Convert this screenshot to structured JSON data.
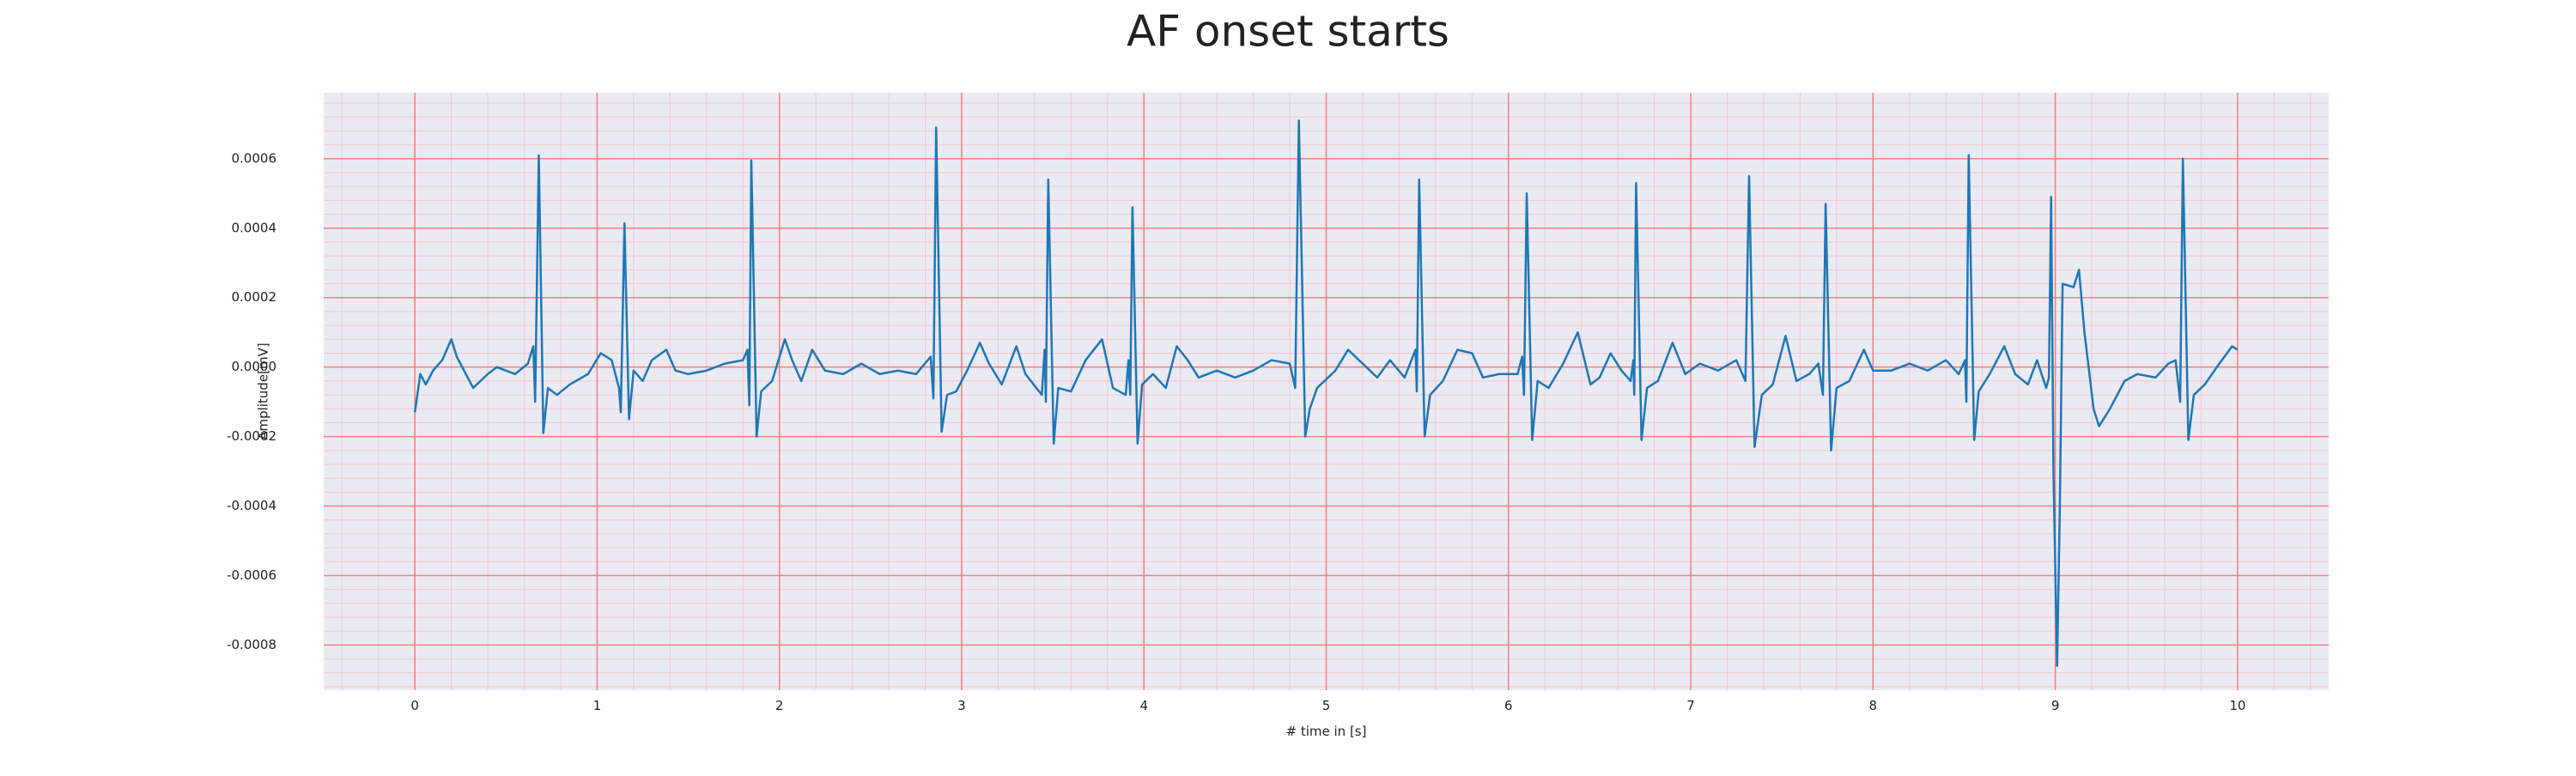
{
  "chart_data": {
    "type": "line",
    "title": "AF onset starts",
    "xlabel": "# time in [s]",
    "ylabel": "Amplitude[mV]",
    "color": "#1f77b4",
    "background": "#eaeaf2",
    "grid": true,
    "grid_color": "#f08080",
    "minor_grid_color": "#f5c6cf",
    "minor_grid": {
      "x": 0.2,
      "y": 4e-05
    },
    "xlim": [
      -0.5,
      10.5
    ],
    "ylim": [
      -0.00093,
      0.00079
    ],
    "xticks": [
      0,
      1,
      2,
      3,
      4,
      5,
      6,
      7,
      8,
      9,
      10
    ],
    "yticks": [
      -0.0008,
      -0.0006,
      -0.0004,
      -0.0002,
      {
        "value": 0,
        "label": "0.0000"
      },
      0.0002,
      0.0004,
      0.0006
    ],
    "x": [
      0,
      0.03,
      0.06,
      0.1,
      0.15,
      0.2,
      0.23,
      0.32,
      0.4,
      0.45,
      0.55,
      0.62,
      0.65,
      0.66,
      0.68,
      0.705,
      0.73,
      0.78,
      0.85,
      0.95,
      1.02,
      1.08,
      1.12,
      1.13,
      1.15,
      1.175,
      1.2,
      1.25,
      1.3,
      1.38,
      1.43,
      1.5,
      1.6,
      1.7,
      1.8,
      1.825,
      1.835,
      1.846,
      1.875,
      1.9,
      1.96,
      2.03,
      2.07,
      2.12,
      2.18,
      2.25,
      2.35,
      2.45,
      2.55,
      2.65,
      2.75,
      2.83,
      2.845,
      2.86,
      2.89,
      2.92,
      2.97,
      3.03,
      3.1,
      3.15,
      3.22,
      3.3,
      3.35,
      3.44,
      3.455,
      3.462,
      3.475,
      3.505,
      3.53,
      3.6,
      3.68,
      3.77,
      3.83,
      3.9,
      3.915,
      3.925,
      3.937,
      3.965,
      3.99,
      4.05,
      4.12,
      4.18,
      4.24,
      4.3,
      4.4,
      4.5,
      4.6,
      4.7,
      4.8,
      4.83,
      4.85,
      4.885,
      4.91,
      4.95,
      5.05,
      5.12,
      5.2,
      5.28,
      5.35,
      5.43,
      5.49,
      5.497,
      5.51,
      5.54,
      5.57,
      5.64,
      5.72,
      5.8,
      5.86,
      5.95,
      6.05,
      6.075,
      6.085,
      6.1,
      6.13,
      6.16,
      6.22,
      6.3,
      6.38,
      6.45,
      6.5,
      6.56,
      6.62,
      6.67,
      6.685,
      6.69,
      6.7,
      6.73,
      6.76,
      6.82,
      6.9,
      6.97,
      7.05,
      7.15,
      7.25,
      7.3,
      7.32,
      7.35,
      7.39,
      7.45,
      7.52,
      7.58,
      7.65,
      7.7,
      7.725,
      7.74,
      7.77,
      7.8,
      7.87,
      7.95,
      8.0,
      8.1,
      8.2,
      8.3,
      8.4,
      8.47,
      8.505,
      8.512,
      8.525,
      8.555,
      8.58,
      8.64,
      8.72,
      8.78,
      8.85,
      8.9,
      8.95,
      8.965,
      8.977,
      8.99,
      9.01,
      9.025,
      9.04,
      9.1,
      9.13,
      9.16,
      9.21,
      9.24,
      9.3,
      9.38,
      9.45,
      9.55,
      9.62,
      9.66,
      9.685,
      9.7,
      9.73,
      9.76,
      9.82,
      9.9,
      9.97,
      10.0
    ],
    "values": [
      -0.00013,
      -2e-05,
      -5e-05,
      -1e-05,
      2e-05,
      8e-05,
      3e-05,
      -6e-05,
      -2e-05,
      0,
      -2e-05,
      1e-05,
      6e-05,
      -0.0001,
      0.00061,
      -0.00019,
      -6e-05,
      -8e-05,
      -5e-05,
      -2e-05,
      4e-05,
      2e-05,
      -6e-05,
      -0.00013,
      0.000414,
      -0.00015,
      -1e-05,
      -4e-05,
      2e-05,
      5e-05,
      -1e-05,
      -2e-05,
      -1e-05,
      1e-05,
      2e-05,
      5e-05,
      -0.00011,
      0.000595,
      -0.0002,
      -7e-05,
      -4e-05,
      8e-05,
      2e-05,
      -4e-05,
      5e-05,
      -1e-05,
      -2e-05,
      1e-05,
      -2e-05,
      -1e-05,
      -2e-05,
      3e-05,
      -9e-05,
      0.00069,
      -0.000186,
      -8e-05,
      -7e-05,
      -1e-05,
      7e-05,
      1e-05,
      -5e-05,
      6e-05,
      -2e-05,
      -8e-05,
      5e-05,
      -0.0001,
      0.00054,
      -0.00022,
      -6e-05,
      -7e-05,
      2e-05,
      8e-05,
      -6e-05,
      -8e-05,
      2e-05,
      -8e-05,
      0.00046,
      -0.00022,
      -5e-05,
      -2e-05,
      -6e-05,
      6e-05,
      2e-05,
      -3e-05,
      -1e-05,
      -3e-05,
      -1e-05,
      2e-05,
      1e-05,
      -6e-05,
      0.00071,
      -0.0002,
      -0.00012,
      -6e-05,
      -1e-05,
      5e-05,
      1e-05,
      -3e-05,
      2e-05,
      -3e-05,
      5e-05,
      -7e-05,
      0.00054,
      -0.0002,
      -8e-05,
      -4e-05,
      5e-05,
      4e-05,
      -3e-05,
      -2e-05,
      -2e-05,
      3e-05,
      -8e-05,
      0.0005,
      -0.00021,
      -4e-05,
      -6e-05,
      1e-05,
      0.0001,
      -5e-05,
      -3e-05,
      4e-05,
      -1e-05,
      -4e-05,
      2e-05,
      -8e-05,
      0.00053,
      -0.00021,
      -6e-05,
      -4e-05,
      7e-05,
      -2e-05,
      1e-05,
      -1e-05,
      2e-05,
      -4e-05,
      0.00055,
      -0.00023,
      -8e-05,
      -5e-05,
      9e-05,
      -4e-05,
      -2e-05,
      1e-05,
      -8e-05,
      0.00047,
      -0.00024,
      -6e-05,
      -4e-05,
      5e-05,
      -1e-05,
      -1e-05,
      1e-05,
      -1e-05,
      2e-05,
      -2e-05,
      2e-05,
      -0.0001,
      0.00061,
      -0.00021,
      -7e-05,
      -2e-05,
      6e-05,
      -2e-05,
      -5e-05,
      2e-05,
      -6e-05,
      -3e-05,
      0.00049,
      -0.0003,
      -0.00086,
      -0.0004,
      0.00024,
      0.00023,
      0.00028,
      0.0001,
      -0.00012,
      -0.00017,
      -0.00012,
      -4e-05,
      -2e-05,
      -3e-05,
      1e-05,
      2e-05,
      -0.0001,
      0.0006,
      -0.00021,
      -8e-05,
      -5e-05,
      1e-05,
      6e-05,
      5e-05
    ]
  }
}
